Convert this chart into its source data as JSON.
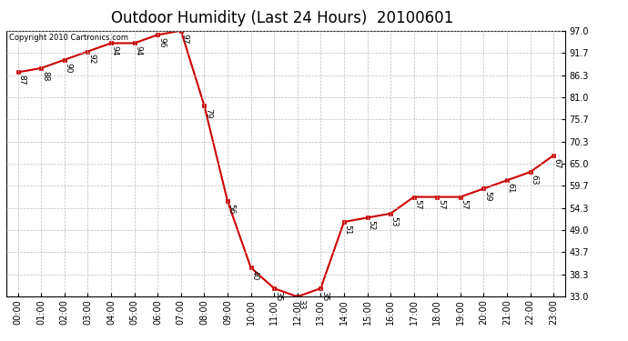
{
  "title": "Outdoor Humidity (Last 24 Hours)  20100601",
  "copyright": "Copyright 2010 Cartronics.com",
  "x_labels": [
    "00:00",
    "01:00",
    "02:00",
    "03:00",
    "04:00",
    "05:00",
    "06:00",
    "07:00",
    "08:00",
    "09:00",
    "10:00",
    "11:00",
    "12:00",
    "13:00",
    "14:00",
    "15:00",
    "16:00",
    "17:00",
    "18:00",
    "19:00",
    "20:00",
    "21:00",
    "22:00",
    "23:00"
  ],
  "x_values": [
    0,
    1,
    2,
    3,
    4,
    5,
    6,
    7,
    8,
    9,
    10,
    11,
    12,
    13,
    14,
    15,
    16,
    17,
    18,
    19,
    20,
    21,
    22,
    23
  ],
  "y_values": [
    87,
    88,
    90,
    92,
    94,
    94,
    96,
    97,
    79,
    56,
    40,
    35,
    33,
    35,
    51,
    52,
    53,
    57,
    57,
    57,
    59,
    61,
    63,
    67
  ],
  "point_labels": [
    "87",
    "88",
    "90",
    "92",
    "94",
    "94",
    "96",
    "97",
    "79",
    "56",
    "40",
    "35",
    "33",
    "35",
    "51",
    "52",
    "53",
    "57",
    "57",
    "57",
    "59",
    "61",
    "63",
    "67"
  ],
  "line_color": "#cc0000",
  "marker_color": "#cc0000",
  "bg_color": "#ffffff",
  "grid_color": "#bbbbbb",
  "ylim_min": 33.0,
  "ylim_max": 97.0,
  "yticks": [
    33.0,
    38.3,
    43.7,
    49.0,
    54.3,
    59.7,
    65.0,
    70.3,
    75.7,
    81.0,
    86.3,
    91.7,
    97.0
  ],
  "title_fontsize": 12,
  "label_fontsize": 6.5,
  "tick_fontsize": 7,
  "copyright_fontsize": 6
}
